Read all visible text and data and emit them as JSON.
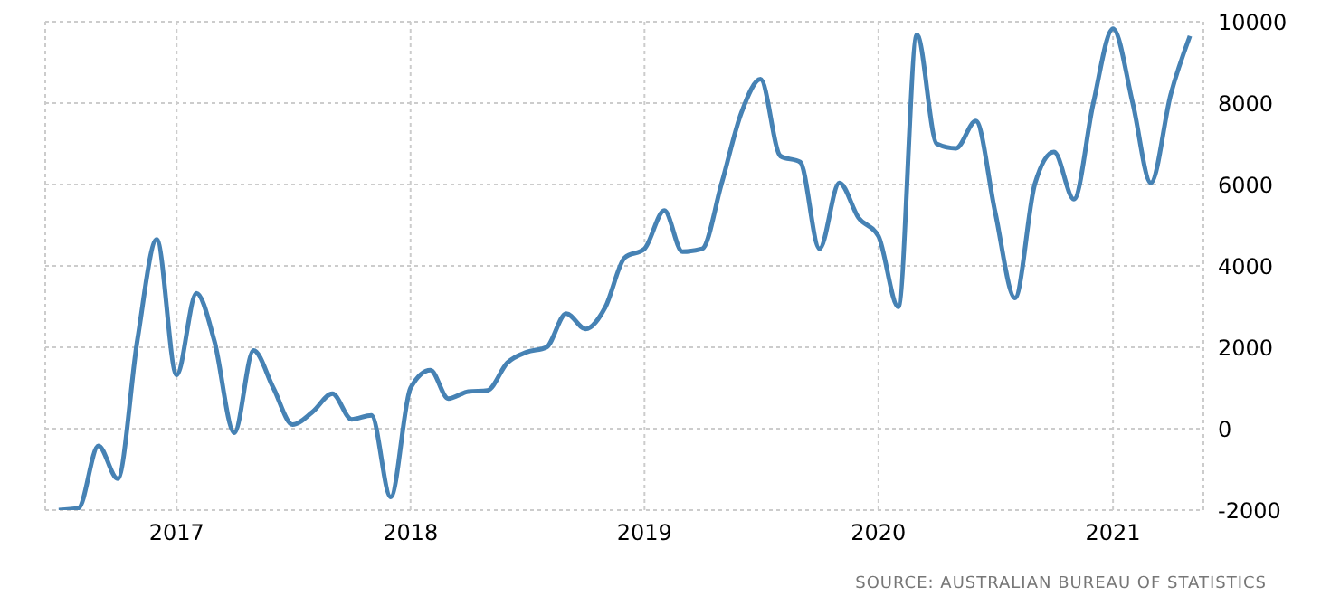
{
  "chart_data": {
    "type": "line",
    "x": [
      "2016-07",
      "2016-08",
      "2016-09",
      "2016-10",
      "2016-11",
      "2016-12",
      "2017-01",
      "2017-02",
      "2017-03",
      "2017-04",
      "2017-05",
      "2017-06",
      "2017-07",
      "2017-08",
      "2017-09",
      "2017-10",
      "2017-11",
      "2017-12",
      "2018-01",
      "2018-02",
      "2018-03",
      "2018-04",
      "2018-05",
      "2018-06",
      "2018-07",
      "2018-08",
      "2018-09",
      "2018-10",
      "2018-11",
      "2018-12",
      "2019-01",
      "2019-02",
      "2019-03",
      "2019-04",
      "2019-05",
      "2019-06",
      "2019-07",
      "2019-08",
      "2019-09",
      "2019-10",
      "2019-11",
      "2019-12",
      "2020-01",
      "2020-02",
      "2020-03",
      "2020-04",
      "2020-05",
      "2020-06",
      "2020-07",
      "2020-08",
      "2020-09",
      "2020-10",
      "2020-11",
      "2020-12",
      "2021-01",
      "2021-02",
      "2021-03",
      "2021-04",
      "2021-05"
    ],
    "series": [
      {
        "color": "#4682b4",
        "values": [
          -2000,
          -1950,
          -420,
          -1230,
          2200,
          4650,
          1320,
          3330,
          2150,
          -100,
          1920,
          1000,
          100,
          410,
          860,
          230,
          330,
          -1680,
          1000,
          1440,
          740,
          910,
          940,
          1620,
          1880,
          2000,
          2830,
          2450,
          2990,
          4200,
          4420,
          5360,
          4350,
          4420,
          6010,
          7760,
          8590,
          6700,
          6550,
          4420,
          6040,
          5180,
          4730,
          2990,
          9680,
          7000,
          6890,
          7560,
          5330,
          3210,
          6010,
          6800,
          5640,
          7980,
          9830,
          7980,
          6040,
          8210,
          9650
        ]
      }
    ],
    "xlim": [
      "2016-06-10",
      "2021-05-22"
    ],
    "xticks": [
      "2017",
      "2018",
      "2019",
      "2020",
      "2021"
    ],
    "ylim": [
      -2000,
      10000
    ],
    "yticks": [
      -2000,
      0,
      2000,
      4000,
      6000,
      8000,
      10000
    ],
    "grid": true,
    "legend": false,
    "marker": "none",
    "line_style": "solid",
    "annotations": [
      "SOURCE: AUSTRALIAN BUREAU OF STATISTICS"
    ]
  }
}
